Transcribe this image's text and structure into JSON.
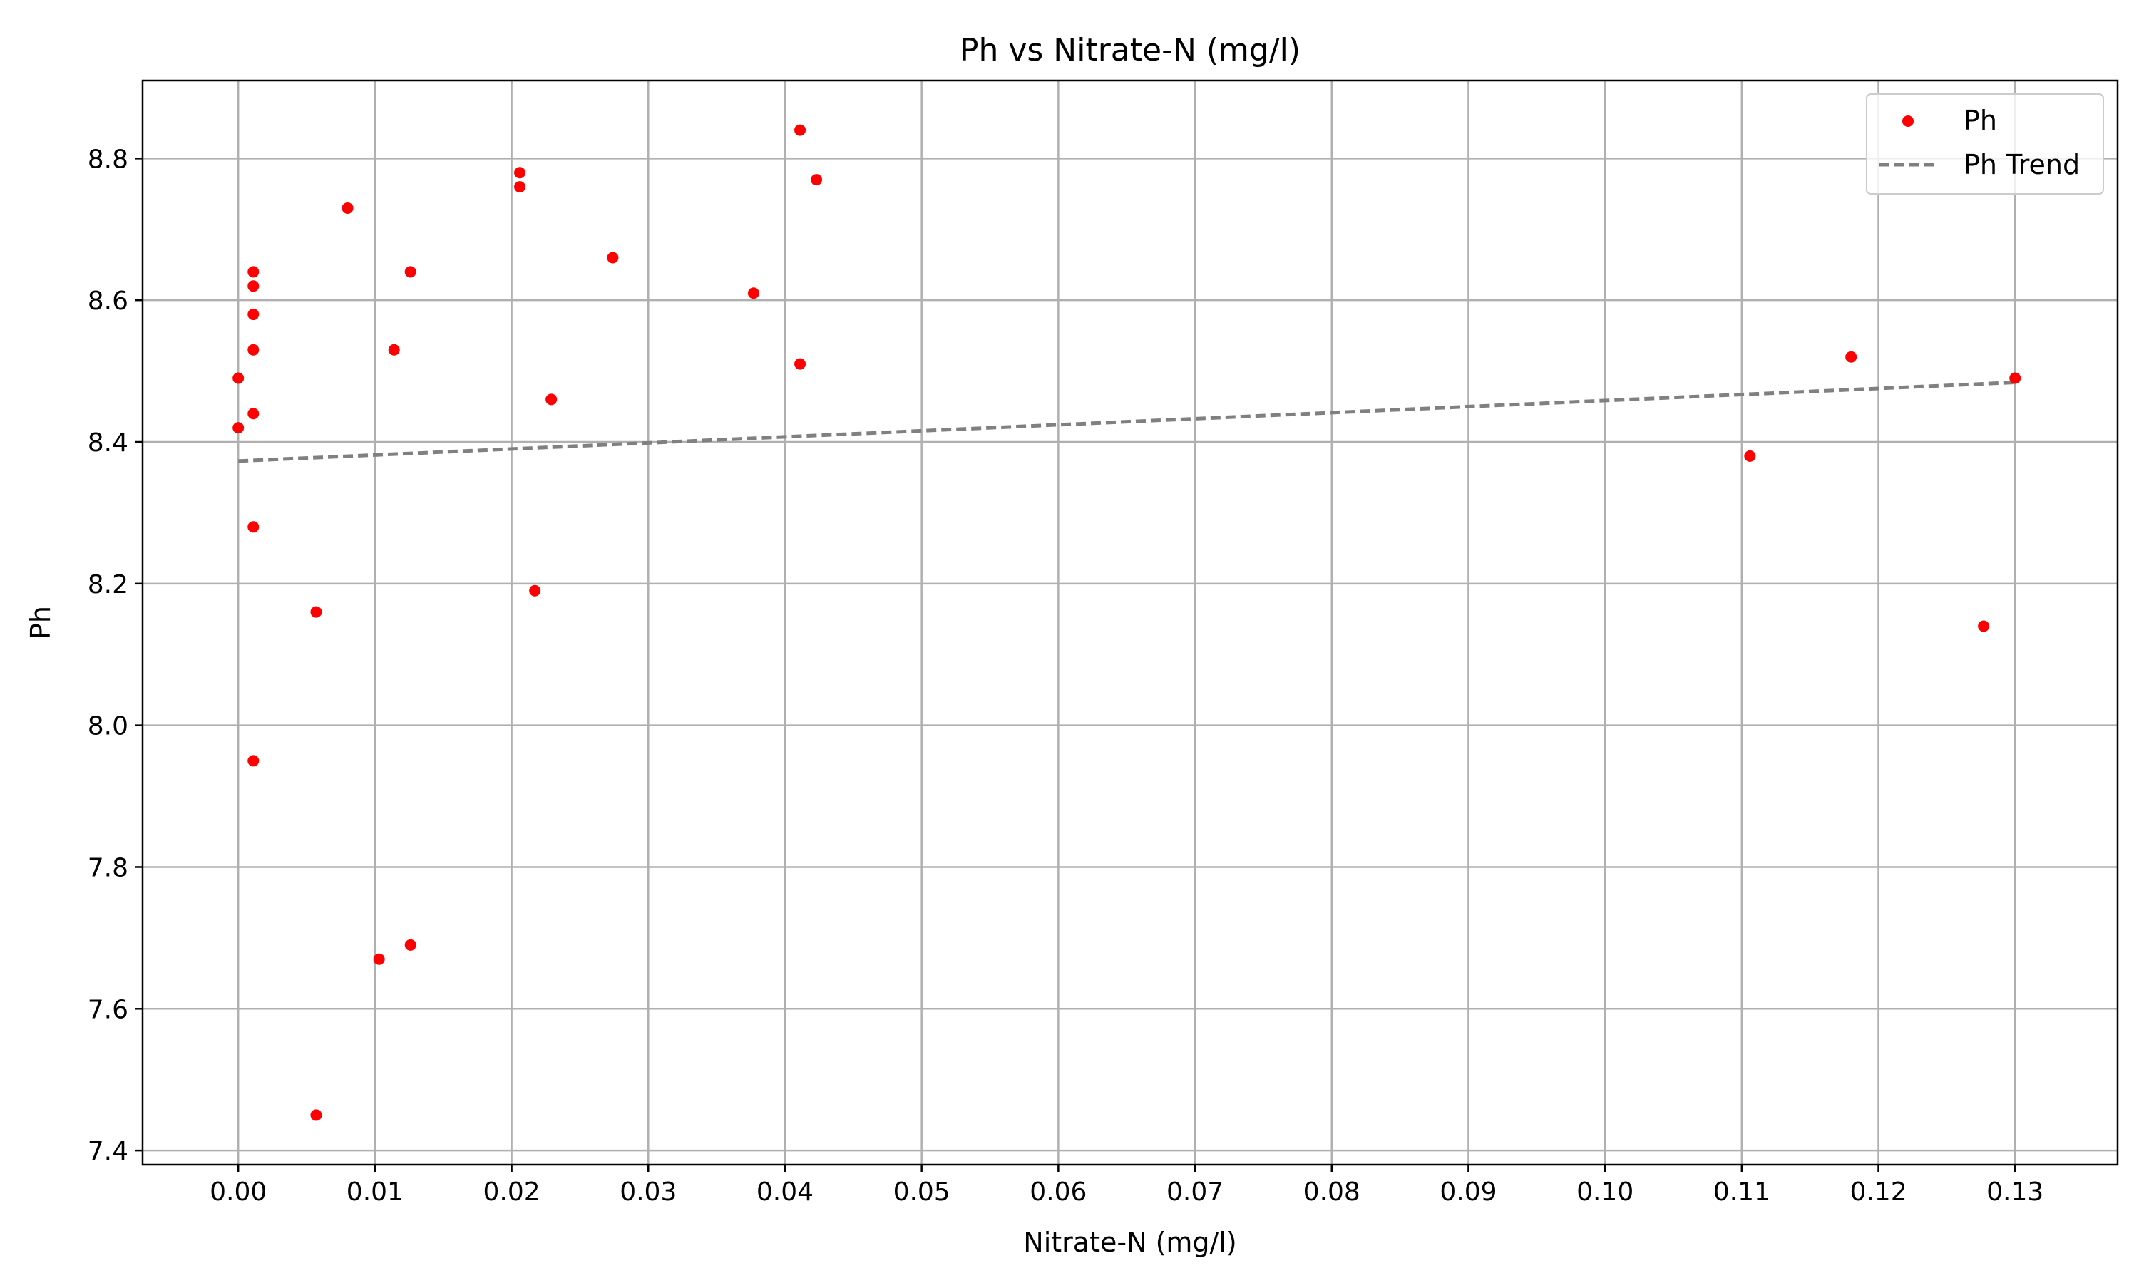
{
  "chart_data": {
    "type": "scatter",
    "title": "Ph vs Nitrate-N (mg/l)",
    "xlabel": "Nitrate-N (mg/l)",
    "ylabel": "Ph",
    "xlim": [
      -0.007,
      0.1375
    ],
    "ylim": [
      7.38,
      8.91
    ],
    "grid": true,
    "legend_position": "top-right",
    "x_ticks": [
      "0.00",
      "0.01",
      "0.02",
      "0.03",
      "0.04",
      "0.05",
      "0.06",
      "0.07",
      "0.08",
      "0.09",
      "0.10",
      "0.11",
      "0.12",
      "0.13"
    ],
    "y_ticks": [
      "7.4",
      "7.6",
      "7.8",
      "8.0",
      "8.2",
      "8.4",
      "8.6",
      "8.8"
    ],
    "series": [
      {
        "name": "Ph",
        "kind": "scatter",
        "color": "#ff0000",
        "points": [
          {
            "x": 0.0,
            "y": 8.49
          },
          {
            "x": 0.0,
            "y": 8.42
          },
          {
            "x": 0.0011,
            "y": 8.64
          },
          {
            "x": 0.0011,
            "y": 8.62
          },
          {
            "x": 0.0011,
            "y": 8.58
          },
          {
            "x": 0.0011,
            "y": 8.53
          },
          {
            "x": 0.0011,
            "y": 8.44
          },
          {
            "x": 0.0011,
            "y": 8.28
          },
          {
            "x": 0.0011,
            "y": 7.95
          },
          {
            "x": 0.0057,
            "y": 8.16
          },
          {
            "x": 0.0057,
            "y": 7.45
          },
          {
            "x": 0.008,
            "y": 8.73
          },
          {
            "x": 0.0103,
            "y": 7.67
          },
          {
            "x": 0.0114,
            "y": 8.53
          },
          {
            "x": 0.0126,
            "y": 8.64
          },
          {
            "x": 0.0126,
            "y": 7.69
          },
          {
            "x": 0.0206,
            "y": 8.78
          },
          {
            "x": 0.0206,
            "y": 8.76
          },
          {
            "x": 0.0217,
            "y": 8.19
          },
          {
            "x": 0.0229,
            "y": 8.46
          },
          {
            "x": 0.0274,
            "y": 8.66
          },
          {
            "x": 0.0377,
            "y": 8.61
          },
          {
            "x": 0.0411,
            "y": 8.84
          },
          {
            "x": 0.0411,
            "y": 8.51
          },
          {
            "x": 0.0423,
            "y": 8.77
          },
          {
            "x": 0.1106,
            "y": 8.38
          },
          {
            "x": 0.118,
            "y": 8.52
          },
          {
            "x": 0.1277,
            "y": 8.14
          },
          {
            "x": 0.13,
            "y": 8.49
          }
        ]
      },
      {
        "name": "Ph Trend",
        "kind": "line",
        "style": "dashed",
        "color": "#808080",
        "points": [
          {
            "x": 0.0,
            "y": 8.373
          },
          {
            "x": 0.13,
            "y": 8.484
          }
        ]
      }
    ]
  }
}
